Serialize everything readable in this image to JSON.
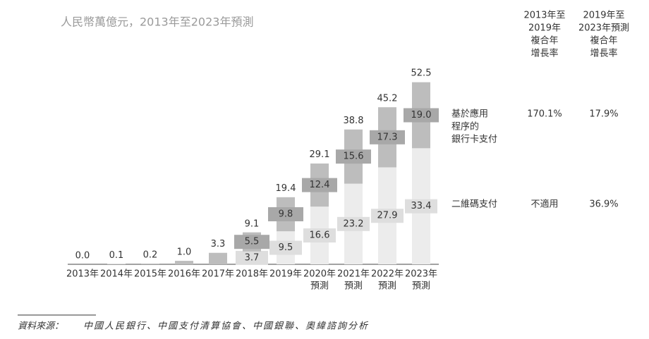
{
  "chart_data": {
    "type": "stacked-bar",
    "title": "人民幣萬億元，2013年至2023年預測",
    "categories": [
      [
        "2013年"
      ],
      [
        "2014年"
      ],
      [
        "2015年"
      ],
      [
        "2016年"
      ],
      [
        "2017年"
      ],
      [
        "2018年"
      ],
      [
        "2019年"
      ],
      [
        "2020年",
        "預測"
      ],
      [
        "2021年",
        "預測"
      ],
      [
        "2022年",
        "預測"
      ],
      [
        "2023年",
        "預測"
      ]
    ],
    "series": [
      {
        "name": [
          "二維碼支付"
        ],
        "color": "#ececec",
        "label_box": "#dedede",
        "values": [
          null,
          null,
          null,
          null,
          null,
          3.7,
          9.5,
          16.6,
          23.2,
          27.9,
          33.4
        ]
      },
      {
        "name": [
          "基於應用",
          "程序的",
          "銀行卡支付"
        ],
        "color": "#bdbdbd",
        "label_box": "#a8a8a8",
        "values": [
          null,
          null,
          null,
          null,
          null,
          5.5,
          9.8,
          12.4,
          15.6,
          17.3,
          19.0
        ],
        "value_labels": [
          null,
          null,
          null,
          null,
          null,
          "5.5",
          "9.8",
          "12.4",
          "15.6",
          "17.3",
          "19.0"
        ]
      }
    ],
    "totals": {
      "color": "#bdbdbd",
      "values": [
        0,
        0.1,
        0.2,
        1.0,
        3.3,
        9.1,
        19.4,
        29.1,
        38.8,
        45.2,
        52.5
      ],
      "value_labels": [
        "0.0",
        "0.1",
        "0.2",
        "1.0",
        "3.3",
        "9.1",
        "19.4",
        "29.1",
        "38.8",
        "45.2",
        "52.5"
      ]
    },
    "table": {
      "headers": [
        [
          "2013年至",
          "2019年",
          "複合年",
          "增長率"
        ],
        [
          "2019年至",
          "2023年預測",
          "複合年",
          "增長率"
        ]
      ],
      "rows": [
        [
          "170.1%",
          "17.9%"
        ],
        [
          "不適用",
          "36.9%"
        ]
      ]
    },
    "source": {
      "label": "資料來源：",
      "text": "中國人民銀行、中國支付清算協會、中國銀聯、奧緯諮詢分析"
    }
  }
}
